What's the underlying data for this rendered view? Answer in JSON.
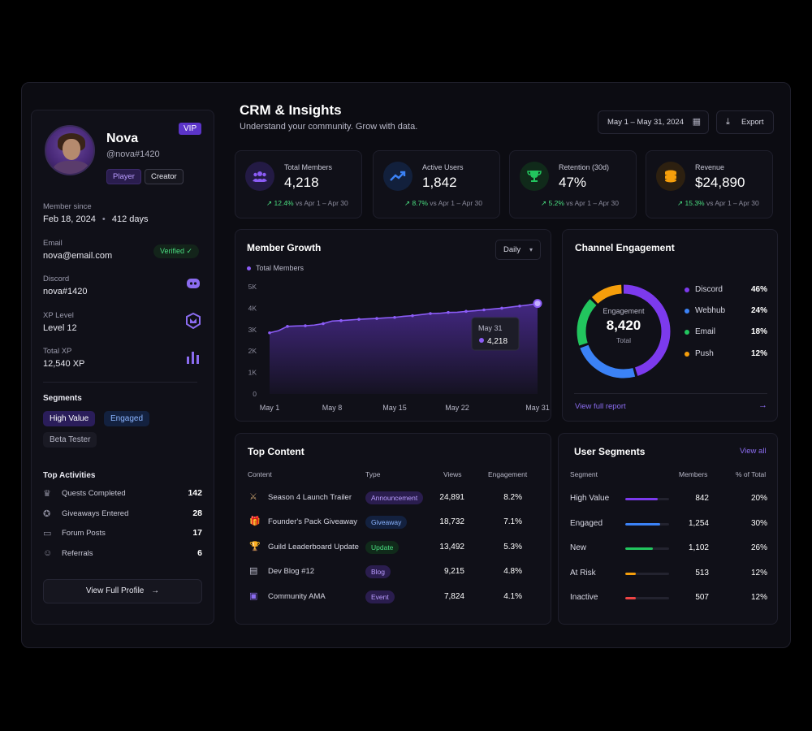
{
  "profile": {
    "name": "Nova",
    "handle": "@nova#1420",
    "vip_badge": "VIP",
    "tags": [
      "Player",
      "Creator"
    ],
    "member_since_label": "Member since",
    "member_since_value": "Feb 18, 2024",
    "member_since_days": "412 days",
    "email_label": "Email",
    "email_value": "nova@email.com",
    "verified_label": "Verified",
    "discord_label": "Discord",
    "discord_value": "nova#1420",
    "xp_level_label": "XP Level",
    "xp_level_value": "Level 12",
    "total_xp_label": "Total XP",
    "total_xp_value": "12,540 XP",
    "segments_title": "Segments",
    "segments": [
      "High Value",
      "Engaged",
      "Beta Tester"
    ],
    "activities_title": "Top Activities",
    "activities": [
      {
        "label": "Quests Completed",
        "value": "142",
        "icon": "trophy-icon"
      },
      {
        "label": "Giveaways Entered",
        "value": "28",
        "icon": "badge-icon"
      },
      {
        "label": "Forum Posts",
        "value": "17",
        "icon": "chat-icon"
      },
      {
        "label": "Referrals",
        "value": "6",
        "icon": "user-plus-icon"
      }
    ],
    "view_profile_label": "View Full Profile"
  },
  "header": {
    "title": "CRM & Insights",
    "subtitle": "Understand your community. Grow with data.",
    "date_range": "May 1 – May 31, 2024",
    "export_label": "Export"
  },
  "kpis": [
    {
      "label": "Total Members",
      "value": "4,218",
      "change": "12.4%",
      "compare": "vs Apr 1 – Apr 30",
      "icon": "users-icon",
      "color": "#8b5cf6"
    },
    {
      "label": "Active Users",
      "value": "1,842",
      "change": "8.7%",
      "compare": "vs Apr 1 – Apr 30",
      "icon": "trend-up-icon",
      "color": "#3b82f6"
    },
    {
      "label": "Retention (30d)",
      "value": "47%",
      "change": "5.2%",
      "compare": "vs Apr 1 – Apr 30",
      "icon": "trophy-icon",
      "color": "#22c55e"
    },
    {
      "label": "Revenue",
      "value": "$24,890",
      "change": "15.3%",
      "compare": "vs Apr 1 – Apr 30",
      "icon": "coins-icon",
      "color": "#f59e0b"
    }
  ],
  "growth": {
    "title": "Member Growth",
    "period": "Daily",
    "tooltip_date": "May 31",
    "tooltip_value": "4,218"
  },
  "chart_data": {
    "type": "area",
    "title": "Member Growth",
    "series": [
      {
        "name": "Total Members",
        "values": [
          2850,
          2950,
          3150,
          3170,
          3180,
          3210,
          3280,
          3400,
          3420,
          3450,
          3480,
          3500,
          3520,
          3550,
          3570,
          3620,
          3650,
          3700,
          3750,
          3760,
          3800,
          3810,
          3850,
          3880,
          3920,
          3960,
          4000,
          4050,
          4100,
          4150,
          4218
        ]
      }
    ],
    "x": [
      "May 1",
      "May 2",
      "May 3",
      "May 4",
      "May 5",
      "May 6",
      "May 7",
      "May 8",
      "May 9",
      "May 10",
      "May 11",
      "May 12",
      "May 13",
      "May 14",
      "May 15",
      "May 16",
      "May 17",
      "May 18",
      "May 19",
      "May 20",
      "May 21",
      "May 22",
      "May 23",
      "May 24",
      "May 25",
      "May 26",
      "May 27",
      "May 28",
      "May 29",
      "May 30",
      "May 31"
    ],
    "xticks": [
      "May 1",
      "May 8",
      "May 15",
      "May 22",
      "May 31"
    ],
    "yticks": [
      "0",
      "1K",
      "2K",
      "3K",
      "4K",
      "5K"
    ],
    "ylim": [
      0,
      5000
    ],
    "grid": false
  },
  "channel": {
    "title": "Channel Engagement",
    "center_label": "Engagement",
    "center_value": "8,420",
    "center_sub": "Total",
    "items": [
      {
        "name": "Discord",
        "pct": "46%",
        "value": 46,
        "color": "#7c3aed"
      },
      {
        "name": "Webhub",
        "pct": "24%",
        "value": 24,
        "color": "#3b82f6"
      },
      {
        "name": "Email",
        "pct": "18%",
        "value": 18,
        "color": "#22c55e"
      },
      {
        "name": "Push",
        "pct": "12%",
        "value": 12,
        "color": "#f59e0b"
      }
    ],
    "report_link": "View full report"
  },
  "top_content": {
    "title": "Top Content",
    "headers": [
      "Content",
      "Type",
      "Views",
      "Engagement"
    ],
    "rows": [
      {
        "name": "Season 4 Launch Trailer",
        "type": "Announcement",
        "views": "24,891",
        "engagement": "8.2%",
        "icon": "sword-icon",
        "type_color": "#8b5cf6"
      },
      {
        "name": "Founder's Pack Giveaway",
        "type": "Giveaway",
        "views": "18,732",
        "engagement": "7.1%",
        "icon": "gift-icon",
        "type_color": "#3b82f6"
      },
      {
        "name": "Guild Leaderboard Update",
        "type": "Update",
        "views": "13,492",
        "engagement": "5.3%",
        "icon": "trophy-icon",
        "type_color": "#22c55e"
      },
      {
        "name": "Dev Blog #12",
        "type": "Blog",
        "views": "9,215",
        "engagement": "4.8%",
        "icon": "document-icon",
        "type_color": "#8b5cf6"
      },
      {
        "name": "Community AMA",
        "type": "Event",
        "views": "7,824",
        "engagement": "4.1%",
        "icon": "calendar-icon",
        "type_color": "#8b5cf6"
      }
    ]
  },
  "user_segments": {
    "title": "User Segments",
    "view_all": "View all",
    "headers": [
      "Segment",
      "Members",
      "% of Total"
    ],
    "rows": [
      {
        "name": "High Value",
        "members": "842",
        "pct": "20%",
        "value": 0.74,
        "color": "#7c3aed"
      },
      {
        "name": "Engaged",
        "members": "1,254",
        "pct": "30%",
        "value": 0.8,
        "color": "#3b82f6"
      },
      {
        "name": "New",
        "members": "1,102",
        "pct": "26%",
        "value": 0.63,
        "color": "#22c55e"
      },
      {
        "name": "At Risk",
        "members": "513",
        "pct": "12%",
        "value": 0.24,
        "color": "#f59e0b"
      },
      {
        "name": "Inactive",
        "members": "507",
        "pct": "12%",
        "value": 0.24,
        "color": "#ef4444"
      }
    ]
  }
}
